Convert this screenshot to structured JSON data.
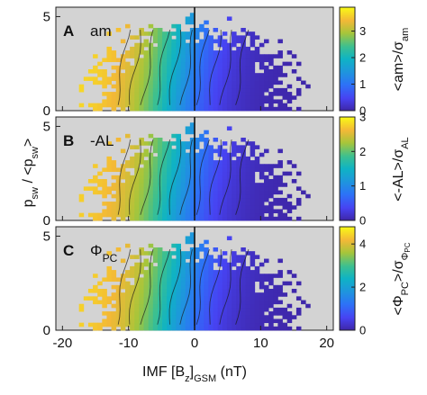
{
  "chart_data": {
    "type": "heatmap",
    "x_label": {
      "main": "IMF [B",
      "sub": "z",
      "sub2": "GSM",
      "tail": "  (nT)"
    },
    "x_ticks": [
      -20,
      -10,
      0,
      10,
      20
    ],
    "xlim": [
      -21,
      21
    ],
    "shared_x": true,
    "background_color": "#d3d3d3",
    "zero_line": true,
    "y_label": {
      "p1": "p",
      "s1": "sw",
      "mid": " / <p",
      "s2": "sw",
      "end": ">"
    },
    "panels": [
      {
        "letter": "A",
        "name": {
          "main": "am",
          "sub": ""
        },
        "ylim": [
          0,
          5.5
        ],
        "y_ticks": [
          0,
          5
        ],
        "colorbar": {
          "min": 0,
          "max": 3.9,
          "ticks": [
            0,
            1,
            2,
            3
          ],
          "label": {
            "a": "<am>/σ",
            "sub": "am",
            "suba": ""
          }
        },
        "field_peak": 3.7
      },
      {
        "letter": "B",
        "name": {
          "main": "-AL",
          "sub": ""
        },
        "ylim": [
          0,
          5.5
        ],
        "y_ticks": [
          0,
          5
        ],
        "colorbar": {
          "min": 0,
          "max": 3.0,
          "ticks": [
            0,
            1,
            2,
            3
          ],
          "label": {
            "a": "<-AL>/σ",
            "sub": "AL",
            "suba": ""
          }
        },
        "field_peak": 2.8
      },
      {
        "letter": "C",
        "name": {
          "main": "Φ",
          "sub": "PC"
        },
        "ylim": [
          0,
          5.5
        ],
        "y_ticks": [
          0,
          5
        ],
        "colorbar": {
          "min": 0,
          "max": 4.8,
          "ticks": [
            0,
            2,
            4
          ],
          "label": {
            "a": "<Φ",
            "sub": "PC",
            "mid": ">/σ",
            "suba": "Φ",
            "subb": "PC"
          }
        },
        "field_peak": 4.5
      }
    ]
  }
}
